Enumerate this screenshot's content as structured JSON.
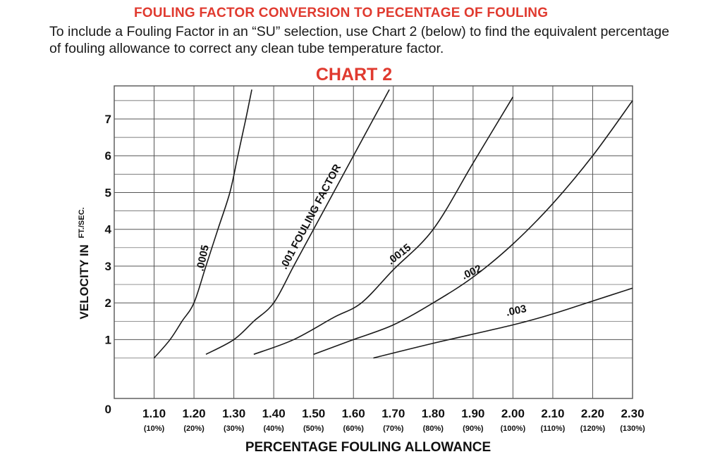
{
  "page": {
    "heading": "FOULING FACTOR CONVERSION TO PECENTAGE OF FOULING",
    "intro": "To include a Fouling Factor in an “SU” selection, use Chart 2 (below) to find the equivalent percentage of fouling allowance to correct any clean tube temperature factor.",
    "colors": {
      "heading": "#e03a2f",
      "ink": "#1a1a1a",
      "grid": "#555555"
    }
  },
  "chart_data": {
    "type": "line",
    "title": "CHART 2",
    "xlabel": "PERCENTAGE FOULING ALLOWANCE",
    "ylabel": "VELOCITY IN",
    "ylabel_unit": "FT./SEC.",
    "xlim": [
      1.0,
      2.3
    ],
    "ylim": [
      -0.6,
      7.9
    ],
    "grid": true,
    "x_ticks": [
      {
        "value": 1.1,
        "label": "1.10",
        "sub": "(10%)"
      },
      {
        "value": 1.2,
        "label": "1.20",
        "sub": "(20%)"
      },
      {
        "value": 1.3,
        "label": "1.30",
        "sub": "(30%)"
      },
      {
        "value": 1.4,
        "label": "1.40",
        "sub": "(40%)"
      },
      {
        "value": 1.5,
        "label": "1.50",
        "sub": "(50%)"
      },
      {
        "value": 1.6,
        "label": "1.60",
        "sub": "(60%)"
      },
      {
        "value": 1.7,
        "label": "1.70",
        "sub": "(70%)"
      },
      {
        "value": 1.8,
        "label": "1.80",
        "sub": "(80%)"
      },
      {
        "value": 1.9,
        "label": "1.90",
        "sub": "(90%)"
      },
      {
        "value": 2.0,
        "label": "2.00",
        "sub": "(100%)"
      },
      {
        "value": 2.1,
        "label": "2.10",
        "sub": "(110%)"
      },
      {
        "value": 2.2,
        "label": "2.20",
        "sub": "(120%)"
      },
      {
        "value": 2.3,
        "label": "2.30",
        "sub": "(130%)"
      }
    ],
    "origin_label": "0",
    "y_ticks": [
      1,
      2,
      3,
      4,
      5,
      6,
      7
    ],
    "series": [
      {
        "name": ".0005",
        "points": [
          [
            1.1,
            0.5
          ],
          [
            1.14,
            1.0
          ],
          [
            1.17,
            1.5
          ],
          [
            1.2,
            2.0
          ],
          [
            1.23,
            3.0
          ],
          [
            1.26,
            4.0
          ],
          [
            1.29,
            5.0
          ],
          [
            1.31,
            6.0
          ],
          [
            1.33,
            7.0
          ],
          [
            1.345,
            7.8
          ]
        ]
      },
      {
        "name": ".001 FOULING FACTOR",
        "points": [
          [
            1.23,
            0.6
          ],
          [
            1.3,
            1.0
          ],
          [
            1.35,
            1.5
          ],
          [
            1.4,
            2.0
          ],
          [
            1.45,
            3.0
          ],
          [
            1.5,
            4.0
          ],
          [
            1.55,
            5.0
          ],
          [
            1.6,
            6.0
          ],
          [
            1.65,
            7.0
          ],
          [
            1.69,
            7.8
          ]
        ]
      },
      {
        "name": ".0015",
        "points": [
          [
            1.35,
            0.6
          ],
          [
            1.45,
            1.0
          ],
          [
            1.55,
            1.6
          ],
          [
            1.62,
            2.0
          ],
          [
            1.7,
            2.9
          ],
          [
            1.8,
            4.0
          ],
          [
            1.9,
            5.8
          ],
          [
            2.0,
            7.6
          ]
        ]
      },
      {
        "name": ".002",
        "points": [
          [
            1.5,
            0.6
          ],
          [
            1.6,
            1.0
          ],
          [
            1.7,
            1.4
          ],
          [
            1.8,
            2.0
          ],
          [
            1.9,
            2.7
          ],
          [
            2.0,
            3.6
          ],
          [
            2.1,
            4.7
          ],
          [
            2.2,
            6.0
          ],
          [
            2.3,
            7.5
          ]
        ]
      },
      {
        "name": ".003",
        "points": [
          [
            1.65,
            0.5
          ],
          [
            1.8,
            0.9
          ],
          [
            2.0,
            1.4
          ],
          [
            2.1,
            1.7
          ],
          [
            2.2,
            2.05
          ],
          [
            2.3,
            2.4
          ]
        ]
      }
    ],
    "curve_labels": [
      {
        "series": 0,
        "x": 1.23,
        "y": 3.2,
        "angle": -78
      },
      {
        "series": 1,
        "x": 1.5,
        "y": 4.3,
        "angle": -62
      },
      {
        "series": 2,
        "x": 1.72,
        "y": 3.25,
        "angle": -38
      },
      {
        "series": 3,
        "x": 1.9,
        "y": 2.75,
        "angle": -25
      },
      {
        "series": 4,
        "x": 2.01,
        "y": 1.7,
        "angle": -12
      }
    ]
  }
}
